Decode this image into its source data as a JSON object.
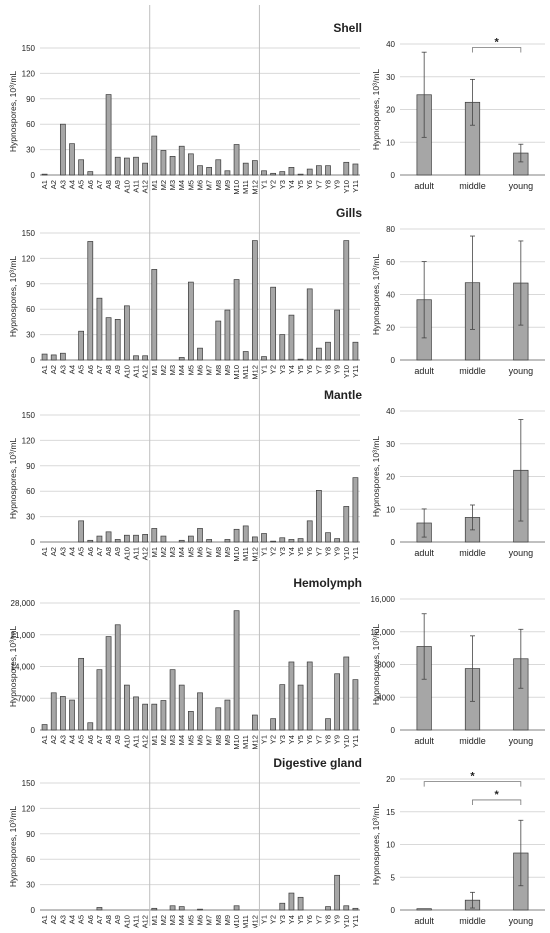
{
  "chart_data": [
    {
      "type": "bar",
      "title": "Shell",
      "ylabel": "Hypnospores, 10³/mL",
      "ylim": [
        0,
        150
      ],
      "yticks": [
        "0",
        "30",
        "60",
        "90",
        "120",
        "150"
      ],
      "categories": [
        "A1",
        "A2",
        "A3",
        "A4",
        "A5",
        "A6",
        "A7",
        "A8",
        "A9",
        "A10",
        "A11",
        "A12",
        "M1",
        "M2",
        "M3",
        "M4",
        "M5",
        "M6",
        "M7",
        "M8",
        "M9",
        "M10",
        "M11",
        "M12",
        "Y1",
        "Y2",
        "Y3",
        "Y4",
        "Y5",
        "Y6",
        "Y7",
        "Y8",
        "Y9",
        "Y10",
        "Y11"
      ],
      "values": [
        1,
        0,
        60,
        37,
        18,
        4,
        0,
        95,
        21,
        20,
        21,
        14,
        46,
        29,
        22,
        34,
        25,
        11,
        9,
        18,
        5,
        36,
        14,
        17,
        5,
        2,
        4,
        9,
        1,
        7,
        11,
        11,
        0,
        15,
        13
      ],
      "group_dividers_after": [
        11,
        23
      ]
    },
    {
      "type": "bar",
      "title": "",
      "ylabel": "Hypnospores, 10³/mL",
      "ylim": [
        0,
        40
      ],
      "yticks": [
        "0",
        "10",
        "20",
        "30",
        "40"
      ],
      "categories": [
        "adult",
        "middle",
        "young"
      ],
      "values": [
        24.5,
        22.2,
        6.7
      ],
      "errors": [
        13,
        7,
        2.7
      ],
      "significance": [
        {
          "from": 1,
          "to": 2,
          "label": "*"
        }
      ]
    },
    {
      "type": "bar",
      "title": "Gills",
      "ylabel": "Hypnospores, 10³/mL",
      "ylim": [
        0,
        150
      ],
      "yticks": [
        "0",
        "30",
        "60",
        "90",
        "120",
        "150"
      ],
      "categories": [
        "A1",
        "A2",
        "A3",
        "A4",
        "A5",
        "A6",
        "A7",
        "A8",
        "A9",
        "A10",
        "A11",
        "A12",
        "M1",
        "M2",
        "M3",
        "M4",
        "M5",
        "M6",
        "M7",
        "M8",
        "M9",
        "M10",
        "M11",
        "M12",
        "Y1",
        "Y2",
        "Y3",
        "Y4",
        "Y5",
        "Y6",
        "Y7",
        "Y8",
        "Y9",
        "Y10",
        "Y11"
      ],
      "values": [
        7,
        6,
        8,
        0,
        34,
        140,
        73,
        50,
        48,
        64,
        5,
        5,
        107,
        0,
        0,
        3,
        92,
        14,
        0,
        46,
        59,
        95,
        10,
        141,
        4,
        86,
        30,
        53,
        1,
        84,
        14,
        21,
        59,
        141,
        21
      ],
      "group_dividers_after": [
        11,
        23
      ]
    },
    {
      "type": "bar",
      "title": "",
      "ylabel": "Hypnospores, 10³/mL",
      "ylim": [
        0,
        80
      ],
      "yticks": [
        "0",
        "20",
        "40",
        "60",
        "80"
      ],
      "categories": [
        "adult",
        "middle",
        "young"
      ],
      "values": [
        36.8,
        47.2,
        47
      ],
      "errors": [
        23.3,
        28.5,
        25.7
      ],
      "significance": []
    },
    {
      "type": "bar",
      "title": "Mantle",
      "ylabel": "Hypnospores, 10³/mL",
      "ylim": [
        0,
        150
      ],
      "yticks": [
        "0",
        "30",
        "60",
        "90",
        "120",
        "150"
      ],
      "categories": [
        "A1",
        "A2",
        "A3",
        "A4",
        "A5",
        "A6",
        "A7",
        "A8",
        "A9",
        "A10",
        "A11",
        "A12",
        "M1",
        "M2",
        "M3",
        "M4",
        "M5",
        "M6",
        "M7",
        "M8",
        "M9",
        "M10",
        "M11",
        "M12",
        "Y1",
        "Y2",
        "Y3",
        "Y4",
        "Y5",
        "Y6",
        "Y7",
        "Y8",
        "Y9",
        "Y10",
        "Y11"
      ],
      "values": [
        0,
        0,
        0,
        0,
        25,
        2,
        7,
        12,
        3,
        8,
        8,
        9,
        16,
        7,
        0,
        2,
        7,
        16,
        3,
        0,
        3,
        15,
        19,
        6,
        10,
        1,
        5,
        3,
        4,
        25,
        61,
        11,
        4,
        42,
        76
      ],
      "group_dividers_after": [
        11,
        23
      ]
    },
    {
      "type": "bar",
      "title": "",
      "ylabel": "Hypnospores, 10³/mL",
      "ylim": [
        0,
        40
      ],
      "yticks": [
        "0",
        "10",
        "20",
        "30",
        "40"
      ],
      "categories": [
        "adult",
        "middle",
        "young"
      ],
      "values": [
        5.8,
        7.5,
        21.9
      ],
      "errors": [
        4.3,
        3.8,
        15.5
      ],
      "significance": []
    },
    {
      "type": "bar",
      "title": "Hemolymph",
      "ylabel": "Hypnospores, 10³/mL",
      "ylim": [
        0,
        28000
      ],
      "yticks": [
        "0",
        "7000",
        "14,000",
        "21,000",
        "28,000"
      ],
      "categories": [
        "A1",
        "A2",
        "A3",
        "A4",
        "A5",
        "A6",
        "A7",
        "A8",
        "A9",
        "A10",
        "A11",
        "A12",
        "M1",
        "M2",
        "M3",
        "M4",
        "M5",
        "M6",
        "M7",
        "M8",
        "M9",
        "M10",
        "M11",
        "M12",
        "Y1",
        "Y2",
        "Y3",
        "Y4",
        "Y5",
        "Y6",
        "Y7",
        "Y8",
        "Y9",
        "Y10",
        "Y11"
      ],
      "values": [
        1200,
        8200,
        7400,
        6600,
        15800,
        1600,
        13300,
        20600,
        23200,
        9900,
        7300,
        5700,
        5700,
        6500,
        13300,
        9900,
        4100,
        8200,
        0,
        4900,
        6600,
        26300,
        0,
        3300,
        0,
        2500,
        10000,
        15000,
        9900,
        15000,
        0,
        2500,
        12400,
        16100,
        11100
      ],
      "group_dividers_after": [
        11,
        23
      ]
    },
    {
      "type": "bar",
      "title": "",
      "ylabel": "Hypnospores, 10³/mL",
      "ylim": [
        0,
        16000
      ],
      "yticks": [
        "0",
        "4000",
        "8000",
        "12,000",
        "16,000"
      ],
      "categories": [
        "adult",
        "middle",
        "young"
      ],
      "values": [
        10200,
        7500,
        8700
      ],
      "errors": [
        4000,
        4000,
        3600
      ],
      "significance": []
    },
    {
      "type": "bar",
      "title": "Digestive gland",
      "ylabel": "Hypnospores, 10³/mL",
      "ylim": [
        0,
        150
      ],
      "yticks": [
        "0",
        "30",
        "60",
        "90",
        "120",
        "150"
      ],
      "categories": [
        "A1",
        "A2",
        "A3",
        "A4",
        "A5",
        "A6",
        "A7",
        "A8",
        "A9",
        "A10",
        "A11",
        "A12",
        "M1",
        "M2",
        "M3",
        "M4",
        "M5",
        "M6",
        "M7",
        "M8",
        "M9",
        "M10",
        "M11",
        "M12",
        "Y1",
        "Y2",
        "Y3",
        "Y4",
        "Y5",
        "Y6",
        "Y7",
        "Y8",
        "Y9",
        "Y10",
        "Y11"
      ],
      "values": [
        0,
        0,
        0,
        0,
        0,
        0,
        3,
        0,
        0,
        0,
        0,
        0,
        2,
        0,
        5,
        4,
        0,
        1,
        0,
        0,
        0,
        5,
        0,
        0,
        0,
        0,
        8,
        20,
        15,
        0,
        0,
        4,
        41,
        5,
        2
      ],
      "group_dividers_after": [
        11,
        23
      ]
    },
    {
      "type": "bar",
      "title": "",
      "ylabel": "Hypnospores, 10³/mL",
      "ylim": [
        0,
        20
      ],
      "yticks": [
        "0",
        "5",
        "10",
        "15",
        "20"
      ],
      "categories": [
        "adult",
        "middle",
        "young"
      ],
      "values": [
        0.2,
        1.5,
        8.7
      ],
      "errors": [
        0,
        1.2,
        5
      ],
      "significance": [
        {
          "from": 0,
          "to": 2,
          "label": "*"
        },
        {
          "from": 1,
          "to": 2,
          "label": "*"
        }
      ]
    }
  ],
  "colors": {
    "bar_fill": "#a6a6a6",
    "bar_stroke": "#3a3a3a",
    "grid": "#d9d9d9",
    "divider": "#bfbfbf"
  }
}
